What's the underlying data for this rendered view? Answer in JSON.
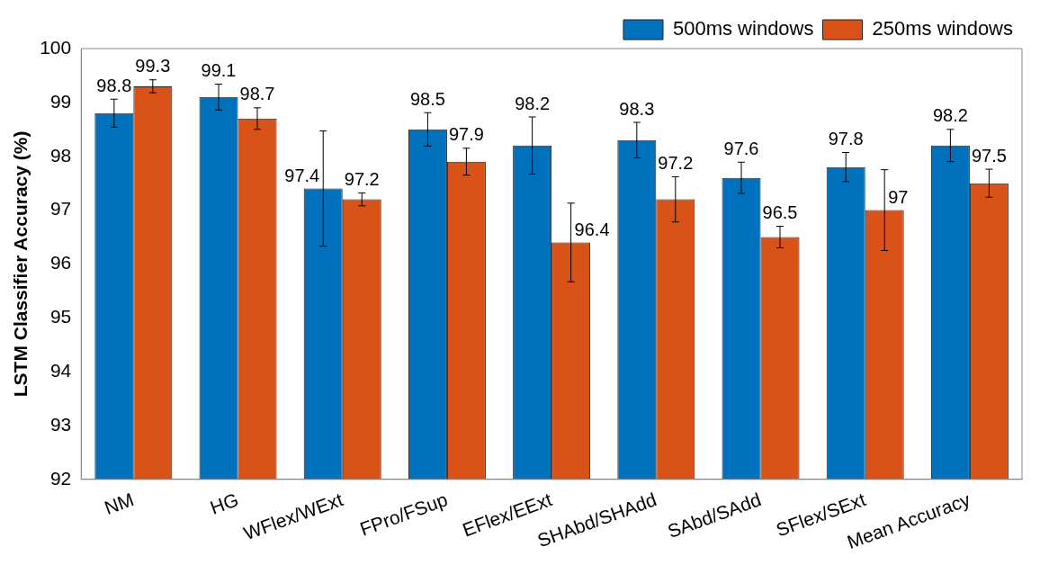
{
  "chart_data": {
    "type": "bar",
    "ylabel": "LSTM Classifier Accuracy (%)",
    "categories": [
      "NM",
      "HG",
      "WFlex/WExt",
      "FPro/FSup",
      "EFlex/EExt",
      "SHAbd/SHAdd",
      "SAbd/SAdd",
      "SFlex/SExt",
      "Mean Accuracy"
    ],
    "series": [
      {
        "name": "500ms windows",
        "color": "#0072bd",
        "values": [
          98.8,
          99.1,
          97.4,
          98.5,
          98.2,
          98.3,
          97.6,
          97.8,
          98.2
        ],
        "errors": [
          0.26,
          0.24,
          1.07,
          0.31,
          0.53,
          0.33,
          0.29,
          0.27,
          0.3
        ]
      },
      {
        "name": "250ms windows",
        "color": "#d95319",
        "values": [
          99.3,
          98.7,
          97.2,
          97.9,
          96.4,
          97.2,
          96.5,
          97,
          97.5
        ],
        "errors": [
          0.12,
          0.2,
          0.12,
          0.25,
          0.73,
          0.42,
          0.2,
          0.75,
          0.26
        ]
      }
    ],
    "ylim": [
      92,
      100
    ],
    "yticks": [
      92,
      93,
      94,
      95,
      96,
      97,
      98,
      99,
      100
    ],
    "grid": false,
    "legend": "top right",
    "data_labels": true
  }
}
